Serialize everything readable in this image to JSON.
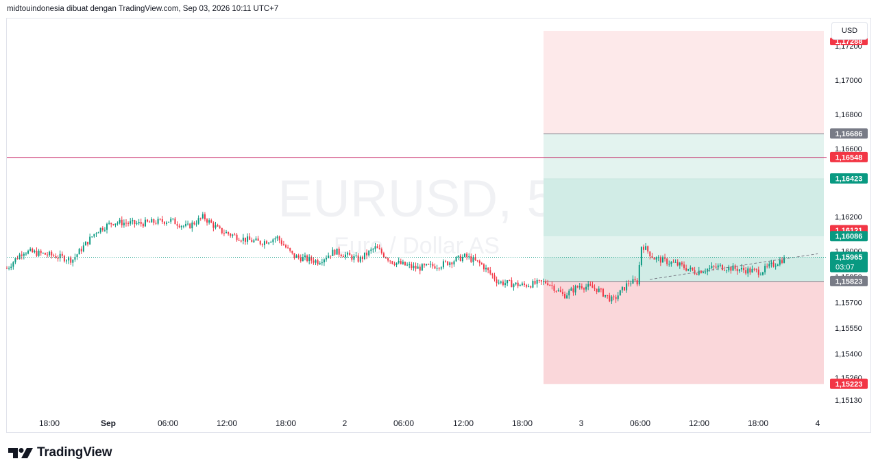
{
  "header": {
    "attribution": "midtouindonesia dibuat dengan TradingView.com, Sep 03, 2026 10:11 UTC+7"
  },
  "watermark": {
    "symbol": "EURUSD, 5",
    "description": "Euro / Dollar AS"
  },
  "currency_button": {
    "label": "USD"
  },
  "footer": {
    "brand": "TradingView"
  },
  "colors": {
    "up": "#089981",
    "down": "#f23645",
    "magenta_line": "#c2185b",
    "target_zone": "#d1ece6",
    "target_zone_light": "#e3f3ef",
    "stop_zone": "#fad7da",
    "stop_zone_light": "#fde9ea",
    "grey_label": "#787b86",
    "dotted_line": "#089981"
  },
  "chart_data": {
    "type": "candlestick",
    "symbol": "EURUSD",
    "timeframe": "5",
    "ylim": [
      1.1505,
      1.1736
    ],
    "y_ticks": [
      "1,17200",
      "1,17000",
      "1,16800",
      "1,16600",
      "1,16200",
      "1,16000",
      "1,15850",
      "1,15700",
      "1,15550",
      "1,15400",
      "1,15260",
      "1,15130"
    ],
    "y_tick_values": [
      1.172,
      1.17,
      1.168,
      1.166,
      1.162,
      1.16,
      1.1585,
      1.157,
      1.1555,
      1.154,
      1.1526,
      1.1513
    ],
    "x_ticks": [
      "18:00",
      "Sep",
      "06:00",
      "12:00",
      "18:00",
      "2",
      "06:00",
      "12:00",
      "18:00",
      "3",
      "06:00",
      "12:00",
      "18:00",
      "4"
    ],
    "x_tick_bold": [
      false,
      true,
      false,
      false,
      false,
      false,
      false,
      false,
      false,
      false,
      false,
      false,
      false,
      false
    ],
    "price_path": [
      [
        0,
        1.159
      ],
      [
        0.02,
        1.16
      ],
      [
        0.05,
        1.1598
      ],
      [
        0.08,
        1.1595
      ],
      [
        0.11,
        1.1612
      ],
      [
        0.13,
        1.1617
      ],
      [
        0.16,
        1.1616
      ],
      [
        0.2,
        1.1618
      ],
      [
        0.22,
        1.1614
      ],
      [
        0.24,
        1.162
      ],
      [
        0.26,
        1.1612
      ],
      [
        0.29,
        1.1607
      ],
      [
        0.31,
        1.1605
      ],
      [
        0.33,
        1.1608
      ],
      [
        0.35,
        1.1597
      ],
      [
        0.38,
        1.1594
      ],
      [
        0.4,
        1.16
      ],
      [
        0.43,
        1.1595
      ],
      [
        0.45,
        1.1602
      ],
      [
        0.47,
        1.1594
      ],
      [
        0.5,
        1.159
      ],
      [
        0.53,
        1.1592
      ],
      [
        0.56,
        1.1597
      ],
      [
        0.58,
        1.1592
      ],
      [
        0.6,
        1.1582
      ],
      [
        0.63,
        1.158
      ],
      [
        0.66,
        1.1582
      ],
      [
        0.68,
        1.1574
      ],
      [
        0.7,
        1.158
      ],
      [
        0.72,
        1.1578
      ],
      [
        0.74,
        1.1571
      ],
      [
        0.76,
        1.1582
      ],
      [
        0.77,
        1.1582
      ],
      [
        0.775,
        1.1604
      ],
      [
        0.79,
        1.1596
      ],
      [
        0.82,
        1.1592
      ],
      [
        0.84,
        1.1588
      ],
      [
        0.87,
        1.1591
      ],
      [
        0.9,
        1.1589
      ],
      [
        0.92,
        1.1588
      ],
      [
        0.935,
        1.1592
      ],
      [
        0.95,
        1.1596
      ]
    ],
    "last_price": 1.15965,
    "countdown": "03:07",
    "entry_price": 1.15823,
    "stop_price": 1.15223,
    "stop_top": 1.17288,
    "targets": [
      1.16086,
      1.16423,
      1.16686
    ],
    "horizontal_line": 1.16548,
    "marked_price": 1.16121,
    "price_labels": [
      {
        "text": "1,17288",
        "price": 1.17288,
        "color": "#f23645",
        "partial": true
      },
      {
        "text": "1,16686",
        "price": 1.16686,
        "color": "#787b86"
      },
      {
        "text": "1,16548",
        "price": 1.16548,
        "color": "#f23645"
      },
      {
        "text": "1,16423",
        "price": 1.16423,
        "color": "#089981"
      },
      {
        "text": "1,16121",
        "price": 1.16121,
        "color": "#f23645"
      },
      {
        "text": "1,16086",
        "price": 1.16086,
        "color": "#089981"
      },
      {
        "text": "1,15965",
        "price": 1.15965,
        "color": "#089981",
        "sub": "03:07"
      },
      {
        "text": "1,15823",
        "price": 1.15823,
        "color": "#787b86"
      },
      {
        "text": "1,15223",
        "price": 1.15223,
        "color": "#f23645"
      }
    ]
  }
}
